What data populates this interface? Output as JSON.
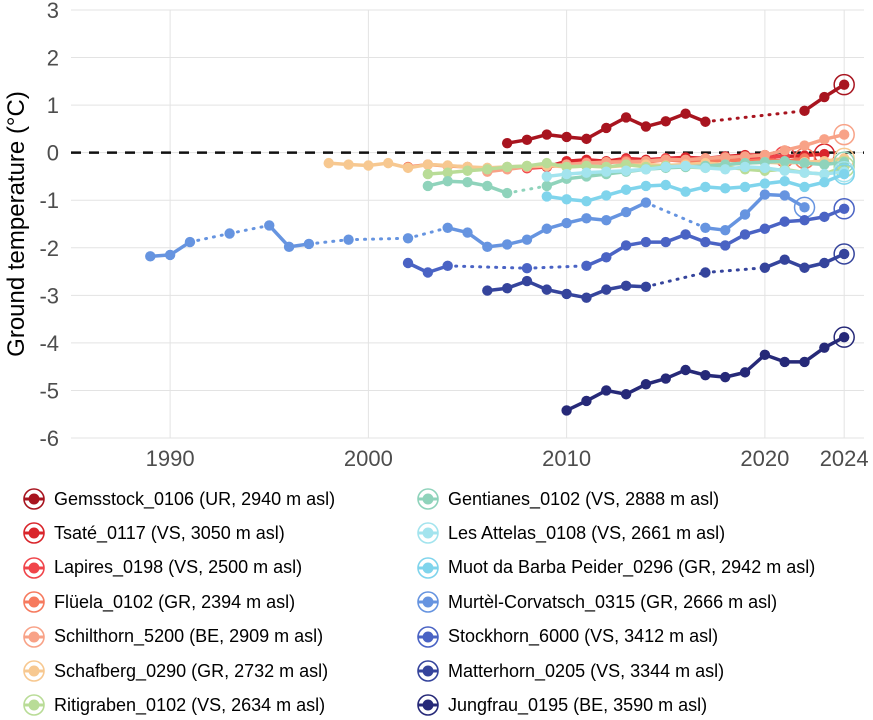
{
  "chart_data": {
    "type": "line",
    "title": "",
    "xlabel": "",
    "ylabel": "Ground temperature (°C)",
    "xlim": [
      1985,
      2025
    ],
    "ylim": [
      -6,
      3
    ],
    "x_ticks": [
      1990,
      2000,
      2010,
      2020,
      2024
    ],
    "x_tick_labels": [
      "1990",
      "2000",
      "2010",
      "2020",
      "2024"
    ],
    "y_ticks": [
      3,
      2,
      1,
      0,
      -1,
      -2,
      -3,
      -4,
      -5,
      -6
    ],
    "y_tick_labels": [
      "3",
      "2",
      "1",
      "0",
      "-1",
      "-2",
      "-3",
      "-4",
      "-5",
      "-6"
    ],
    "reference_line": {
      "y": 0,
      "style": "dashed"
    },
    "series": [
      {
        "name": "Gemsstock_0106 (UR, 2940 m asl)",
        "color": "#a8141f",
        "x": [
          2007,
          2008,
          2009,
          2010,
          2011,
          2012,
          2013,
          2014,
          2015,
          2016,
          2017,
          2022,
          2023,
          2024
        ],
        "y": [
          0.2,
          0.27,
          0.38,
          0.33,
          0.29,
          0.52,
          0.74,
          0.55,
          0.66,
          0.82,
          0.65,
          0.88,
          1.17,
          1.43
        ],
        "highlight_last": true
      },
      {
        "name": "Tsaté_0117 (VS, 3050 m asl)",
        "color": "#d9252b",
        "x": [
          2009,
          2010,
          2011,
          2012,
          2013,
          2014,
          2015,
          2016,
          2017,
          2018,
          2019,
          2020,
          2021,
          2022,
          2023
        ],
        "y": [
          -0.3,
          -0.18,
          -0.15,
          -0.18,
          -0.12,
          -0.15,
          -0.12,
          -0.1,
          -0.12,
          -0.08,
          -0.05,
          -0.05,
          -0.08,
          -0.06,
          -0.03
        ],
        "highlight_last": true
      },
      {
        "name": "Lapires_0198 (VS, 2500 m asl)",
        "color": "#f0444a",
        "x": [
          2008,
          2009,
          2010,
          2011,
          2012,
          2013,
          2014,
          2015,
          2016,
          2017,
          2018,
          2019,
          2020,
          2021
        ],
        "y": [
          -0.33,
          -0.3,
          -0.25,
          -0.2,
          -0.22,
          -0.15,
          -0.18,
          -0.12,
          -0.15,
          -0.12,
          -0.1,
          -0.12,
          -0.1,
          -0.08
        ],
        "highlight_last": true
      },
      {
        "name": "Flüela_0102 (GR, 2394 m asl)",
        "color": "#f67a5e",
        "x": [
          2002,
          2003,
          2004,
          2005,
          2006,
          2007,
          2008,
          2009,
          2010,
          2011,
          2012,
          2013,
          2014,
          2015,
          2016,
          2017,
          2018,
          2019,
          2020,
          2021,
          2022
        ],
        "y": [
          -0.3,
          -0.25,
          -0.28,
          -0.3,
          -0.35,
          -0.32,
          -0.3,
          -0.28,
          -0.25,
          -0.22,
          -0.2,
          -0.18,
          -0.2,
          -0.15,
          -0.18,
          -0.2,
          -0.15,
          -0.18,
          -0.15,
          -0.18,
          -0.12
        ],
        "highlight_last": true
      },
      {
        "name": "Schilthorn_5200 (BE, 2909 m asl)",
        "color": "#f8a287",
        "x": [
          2006,
          2007,
          2008,
          2009,
          2010,
          2011,
          2012,
          2013,
          2014,
          2015,
          2016,
          2017,
          2018,
          2019,
          2020,
          2021,
          2022,
          2023,
          2024
        ],
        "y": [
          -0.4,
          -0.35,
          -0.3,
          -0.28,
          -0.25,
          -0.22,
          -0.2,
          -0.2,
          -0.18,
          -0.15,
          -0.15,
          -0.12,
          -0.1,
          -0.08,
          -0.05,
          0.05,
          0.15,
          0.28,
          0.38
        ],
        "highlight_last": true
      },
      {
        "name": "Schafberg_0290 (GR, 2732 m asl)",
        "color": "#f7c890",
        "x": [
          1998,
          1999,
          2000,
          2001,
          2002,
          2003,
          2004,
          2005,
          2006,
          2007,
          2008,
          2009,
          2010,
          2011,
          2012,
          2013,
          2014,
          2015,
          2016,
          2017,
          2018,
          2019,
          2020,
          2021,
          2022,
          2023,
          2024
        ],
        "y": [
          -0.22,
          -0.25,
          -0.27,
          -0.22,
          -0.32,
          -0.25,
          -0.27,
          -0.3,
          -0.32,
          -0.3,
          -0.28,
          -0.27,
          -0.3,
          -0.28,
          -0.3,
          -0.27,
          -0.25,
          -0.27,
          -0.25,
          -0.22,
          -0.25,
          -0.22,
          -0.2,
          -0.22,
          -0.2,
          -0.18,
          -0.12
        ],
        "highlight_last": true
      },
      {
        "name": "Ritigraben_0102 (VS, 2634 m asl)",
        "color": "#b9dc97",
        "x": [
          2003,
          2004,
          2005,
          2006,
          2007,
          2008,
          2009,
          2010,
          2011,
          2012,
          2013,
          2014,
          2015,
          2016,
          2017,
          2018,
          2019,
          2020,
          2021,
          2022,
          2023,
          2024
        ],
        "y": [
          -0.45,
          -0.42,
          -0.38,
          -0.35,
          -0.3,
          -0.28,
          -0.22,
          -0.3,
          -0.28,
          -0.3,
          -0.25,
          -0.3,
          -0.28,
          -0.3,
          -0.32,
          -0.3,
          -0.35,
          -0.38,
          -0.35,
          -0.42,
          -0.45,
          -0.3
        ],
        "highlight_last": true
      },
      {
        "name": "Gentianes_0102 (VS, 2888 m asl)",
        "color": "#8fd3bb",
        "x": [
          2003,
          2004,
          2005,
          2006,
          2007,
          2009,
          2010,
          2011,
          2012,
          2013,
          2014,
          2015,
          2016,
          2017,
          2018,
          2019,
          2020,
          2021,
          2022,
          2023,
          2024
        ],
        "y": [
          -0.7,
          -0.6,
          -0.62,
          -0.7,
          -0.85,
          -0.7,
          -0.55,
          -0.5,
          -0.45,
          -0.4,
          -0.35,
          -0.32,
          -0.3,
          -0.28,
          -0.25,
          -0.22,
          -0.2,
          -0.18,
          -0.22,
          -0.25,
          -0.2
        ],
        "highlight_last": true
      },
      {
        "name": "Les Attelas_0108 (VS, 2661 m asl)",
        "color": "#a3e4ee",
        "x": [
          2009,
          2010,
          2011,
          2012,
          2013,
          2014,
          2015,
          2016,
          2017,
          2018,
          2019,
          2020,
          2021,
          2022,
          2023,
          2024
        ],
        "y": [
          -0.5,
          -0.45,
          -0.42,
          -0.4,
          -0.38,
          -0.35,
          -0.3,
          -0.28,
          -0.32,
          -0.35,
          -0.3,
          -0.32,
          -0.38,
          -0.42,
          -0.45,
          -0.4
        ],
        "highlight_last": true
      },
      {
        "name": "Muot da Barba Peider_0296 (GR, 2942 m asl)",
        "color": "#7fd4ec",
        "x": [
          2009,
          2010,
          2011,
          2012,
          2013,
          2014,
          2015,
          2016,
          2017,
          2018,
          2019,
          2020,
          2021,
          2022,
          2023,
          2024
        ],
        "y": [
          -0.92,
          -0.98,
          -1.02,
          -0.9,
          -0.78,
          -0.7,
          -0.68,
          -0.82,
          -0.72,
          -0.75,
          -0.72,
          -0.65,
          -0.6,
          -0.72,
          -0.62,
          -0.45
        ],
        "highlight_last": true
      },
      {
        "name": "Murtèl-Corvatsch_0315 (GR, 2666 m asl)",
        "color": "#6694e0",
        "x": [
          1989,
          1990,
          1991,
          1993,
          1995,
          1996,
          1997,
          1999,
          2002,
          2004,
          2005,
          2006,
          2007,
          2008,
          2009,
          2010,
          2011,
          2012,
          2013,
          2014,
          2017,
          2018,
          2019,
          2020,
          2021,
          2022
        ],
        "y": [
          -2.18,
          -2.15,
          -1.88,
          -1.7,
          -1.53,
          -1.98,
          -1.92,
          -1.83,
          -1.8,
          -1.58,
          -1.68,
          -1.98,
          -1.93,
          -1.83,
          -1.6,
          -1.48,
          -1.38,
          -1.42,
          -1.25,
          -1.05,
          -1.58,
          -1.63,
          -1.3,
          -0.88,
          -0.9,
          -1.15
        ],
        "highlight_last": true
      },
      {
        "name": "Stockhorn_6000 (VS, 3412 m asl)",
        "color": "#4a63c4",
        "x": [
          2002,
          2003,
          2004,
          2008,
          2011,
          2012,
          2013,
          2014,
          2015,
          2016,
          2017,
          2018,
          2019,
          2020,
          2021,
          2022,
          2023,
          2024
        ],
        "y": [
          -2.32,
          -2.52,
          -2.38,
          -2.43,
          -2.38,
          -2.2,
          -1.95,
          -1.88,
          -1.88,
          -1.72,
          -1.88,
          -1.95,
          -1.72,
          -1.6,
          -1.45,
          -1.42,
          -1.35,
          -1.18
        ],
        "highlight_last": true
      },
      {
        "name": "Matterhorn_0205 (VS, 3344 m asl)",
        "color": "#35449c",
        "x": [
          2006,
          2007,
          2008,
          2009,
          2010,
          2011,
          2012,
          2013,
          2014,
          2017,
          2020,
          2021,
          2022,
          2023,
          2024
        ],
        "y": [
          -2.9,
          -2.85,
          -2.7,
          -2.88,
          -2.97,
          -3.05,
          -2.88,
          -2.8,
          -2.82,
          -2.52,
          -2.42,
          -2.25,
          -2.42,
          -2.32,
          -2.13
        ],
        "highlight_last": true
      },
      {
        "name": "Jungfrau_0195 (BE, 3590 m asl)",
        "color": "#262978",
        "x": [
          2010,
          2011,
          2012,
          2013,
          2014,
          2015,
          2016,
          2017,
          2018,
          2019,
          2020,
          2021,
          2022,
          2023,
          2024
        ],
        "y": [
          -5.42,
          -5.22,
          -5.0,
          -5.08,
          -4.87,
          -4.75,
          -4.57,
          -4.68,
          -4.72,
          -4.62,
          -4.25,
          -4.4,
          -4.4,
          -4.1,
          -3.88
        ],
        "highlight_last": true
      }
    ]
  }
}
